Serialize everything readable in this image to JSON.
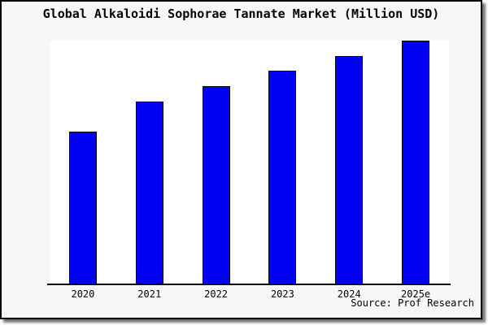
{
  "chart_data": {
    "type": "bar",
    "title": "Global Alkaloidi Sophorae Tannate Market (Million USD)",
    "categories": [
      "2020",
      "2021",
      "2022",
      "2023",
      "2024",
      "2025e"
    ],
    "values": [
      62.6,
      74.9,
      81.5,
      87.6,
      93.6,
      100
    ],
    "value_note": "no y-axis ticks or data labels shown; values are bar heights as percent of tallest bar",
    "ylim": [
      0,
      100
    ],
    "xlabel": "",
    "ylabel": "",
    "grid": false,
    "legend": false,
    "source": "Source: Prof Research",
    "colors": {
      "bar_fill": "#0000f2",
      "bar_border": "#000000",
      "canvas_background": "#f7f7f7",
      "plot_background": "#ffffff",
      "axis": "#000000",
      "text": "#000000"
    }
  }
}
